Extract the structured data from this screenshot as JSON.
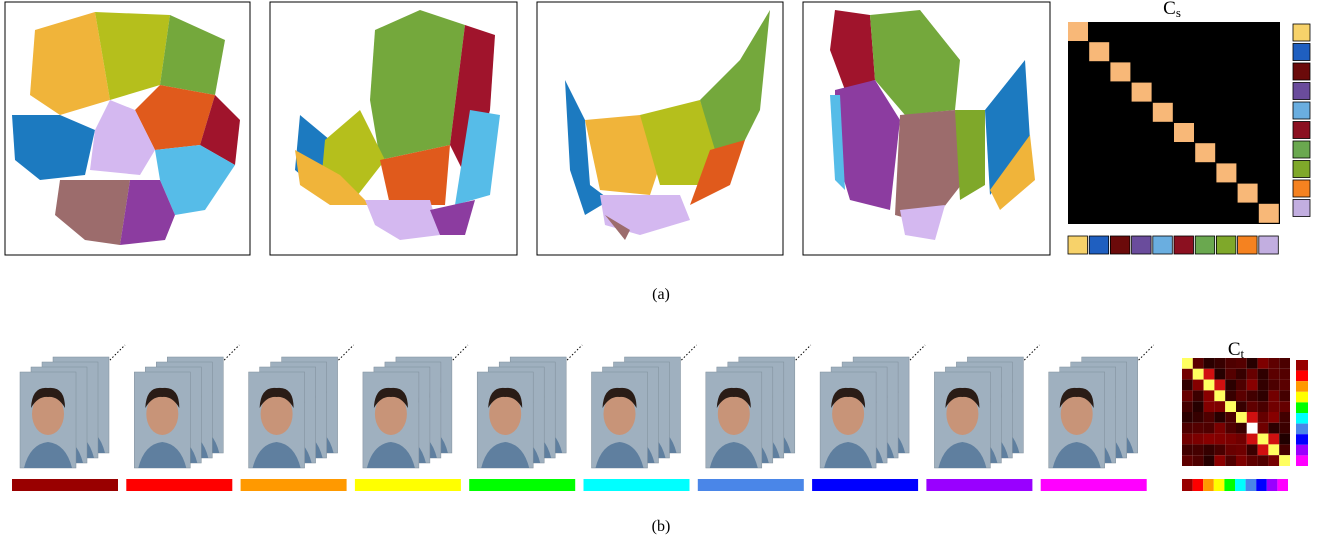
{
  "panel_a": {
    "matrix_label": {
      "symbol": "C",
      "subscript": "s"
    },
    "caption": "(a)"
  },
  "panel_b": {
    "matrix_label": {
      "symbol": "C",
      "subscript": "t"
    },
    "caption": "(b)"
  }
}
